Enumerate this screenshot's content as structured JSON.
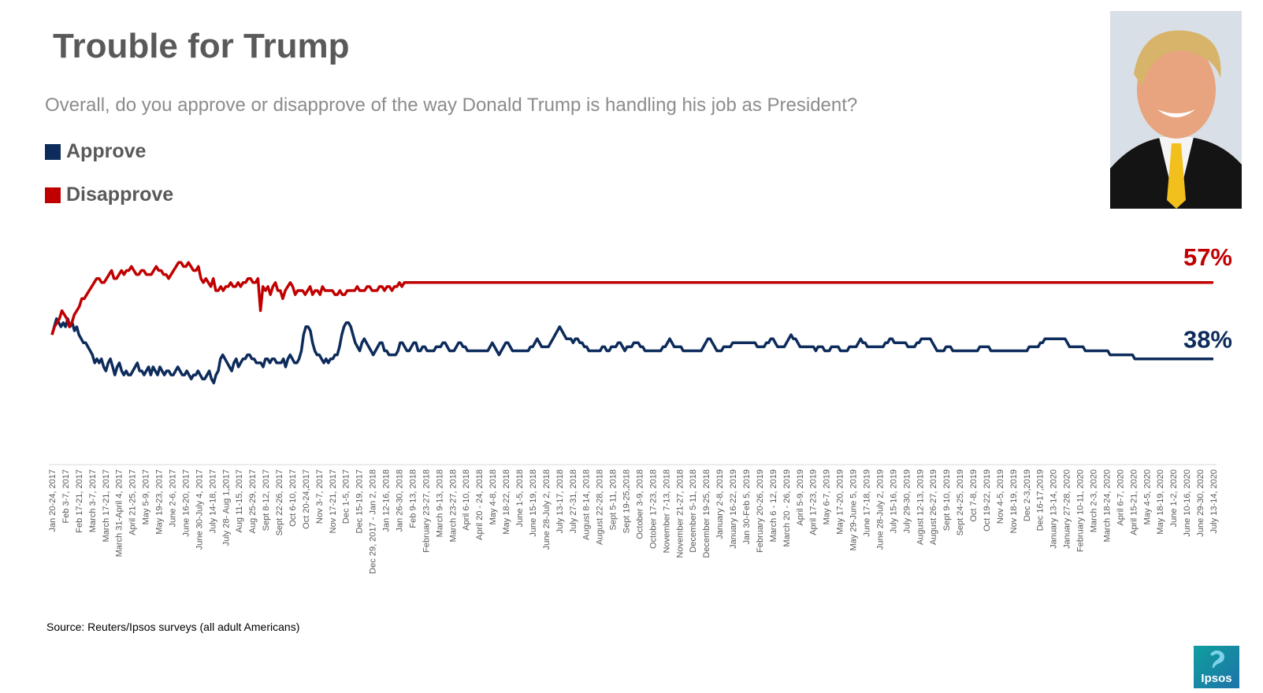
{
  "chart_data": {
    "type": "line",
    "title": "Trouble for Trump",
    "subtitle": "Overall, do you approve or disapprove of the way Donald Trump is handling his job as President?",
    "ylim": [
      25,
      65
    ],
    "grid": false,
    "legend_position": "top-left",
    "x_tick_labels": [
      "Jan 20-24, 2017",
      "Feb 3-7, 2017",
      "Feb 17-21, 2017",
      "March 3-7, 2017",
      "March 17-21, 2017",
      "March 31-April 4, 2017",
      "April 21-25, 2017",
      "May 5-9, 2017",
      "May 19-23, 2017",
      "June 2-6, 2017",
      "June 16-20, 2017",
      "June 30-July 4, 2017",
      "July 14-18, 2017",
      "July 28- Aug 1,2017",
      "Aug 11-15, 2017",
      "Aug 25-29, 2017",
      "Sept 8-12, 2017",
      "Sept 22-26, 2017",
      "Oct 6-10, 2017",
      "Oct 20-24,2017",
      "Nov 3-7, 2017",
      "Nov 17-21, 2017",
      "Dec 1-5, 2017",
      "Dec 15-19, 2017",
      "Dec 29, 2017 - Jan 2, 2018",
      "Jan 12-16, 2018",
      "Jan 26-30, 2018",
      "Feb 9-13, 2018",
      "February 23-27, 2018",
      "March 9-13, 2018",
      "March 23-27, 2018",
      "April 6-10, 2018",
      "April 20 - 24, 2018",
      "May 4-8, 2018",
      "May 18-22, 2018",
      "June 1-5, 2018",
      "June 15-19, 2018",
      "June 28-July 2, 2018",
      "July 13-17, 2018",
      "July 27-31, 2018",
      "August 8-14, 2018",
      "August 22-28, 2018",
      "Sept 5-11, 2018",
      "Sept 19-25,2018",
      "October 3-9, 2018",
      "October 17-23, 2018",
      "November 7-13, 2018",
      "November 21-27, 2018",
      "December 5-11, 2018",
      "December 19-25, 2018",
      "January 2-8, 2019",
      "January 16-22, 2019",
      "Jan 30-Feb 5, 2019",
      "February 20-26, 2019",
      "March 6 - 12, 2019",
      "March 20 - 26, 2019",
      "April 5-9, 2019",
      "April 17-23, 2019",
      "May 6-7, 2019",
      "May 17-20, 2019",
      "May 29-June 5, 2019",
      "June 17-18, 2019",
      "June 28-July 2, 2019",
      "July 15-16, 2019",
      "July 29-30, 2019",
      "August 12-13, 2019",
      "August 26-27, 2019",
      "Sept 9-10, 2019",
      "Sept 24-25, 2019",
      "Oct 7-8, 2019",
      "Oct 19-22, 2019",
      "Nov 4-5, 2019",
      "Nov 18-19, 2019",
      "Dec 2-3,2019",
      "Dec 16-17,2019",
      "January 13-14, 2020",
      "January 27-28, 2020",
      "February 10-11, 2020",
      "March 2-3, 2020",
      "March 18-24, 2020",
      "April 6-7, 2020",
      "April 15-21, 2020",
      "May 4-5, 2020",
      "May 18-19, 2020",
      "June 1-2, 2020",
      "June 10-16, 2020",
      "June 29-30, 2020",
      "July 13-14, 2020"
    ],
    "series": [
      {
        "name": "Approve",
        "color": "#0d2b5b",
        "end_label": "38%",
        "values": [
          44,
          46,
          48,
          47,
          46,
          47,
          46,
          48,
          46,
          47,
          45,
          46,
          44,
          43,
          42,
          42,
          41,
          40,
          39,
          37,
          38,
          37,
          38,
          36,
          35,
          37,
          38,
          36,
          34,
          36,
          37,
          35,
          34,
          35,
          34,
          34,
          35,
          36,
          37,
          35,
          35,
          34,
          35,
          36,
          34,
          36,
          35,
          34,
          36,
          35,
          34,
          35,
          35,
          34,
          34,
          35,
          36,
          35,
          34,
          34,
          35,
          34,
          33,
          34,
          34,
          35,
          34,
          33,
          33,
          34,
          35,
          33,
          32,
          34,
          35,
          38,
          39,
          38,
          37,
          36,
          35,
          37,
          38,
          36,
          37,
          38,
          38,
          39,
          39,
          38,
          38,
          37,
          37,
          37,
          36,
          38,
          38,
          37,
          38,
          38,
          37,
          37,
          37,
          38,
          36,
          38,
          39,
          38,
          37,
          37,
          38,
          40,
          44,
          46,
          46,
          45,
          42,
          40,
          39,
          39,
          38,
          37,
          38,
          37,
          38,
          38,
          39,
          39,
          41,
          44,
          46,
          47,
          47,
          46,
          44,
          42,
          41,
          40,
          42,
          43,
          42,
          41,
          40,
          39,
          40,
          41,
          42,
          42,
          40,
          40,
          39,
          39,
          39,
          39,
          40,
          42,
          42,
          41,
          40,
          40,
          41,
          42,
          42,
          40,
          40,
          41,
          41,
          40,
          40,
          40,
          40,
          41,
          41,
          41,
          42,
          42,
          41,
          40,
          40,
          40,
          41,
          42,
          42,
          41,
          41,
          40,
          40,
          40,
          40,
          40,
          40,
          40,
          40,
          40,
          40,
          41,
          42,
          41,
          40,
          39,
          40,
          41,
          42,
          42,
          41,
          40,
          40,
          40,
          40,
          40,
          40,
          40,
          40,
          41,
          41,
          42,
          43,
          42,
          41,
          41,
          41,
          41,
          42,
          43,
          44,
          45,
          46,
          45,
          44,
          43,
          43,
          43,
          42,
          43,
          43,
          42,
          42,
          41,
          41,
          40,
          40,
          40,
          40,
          40,
          40,
          41,
          41,
          40,
          40,
          41,
          41,
          41,
          42,
          42,
          41,
          40,
          41,
          41,
          41,
          42,
          42,
          42,
          41,
          41,
          40,
          40,
          40,
          40,
          40,
          40,
          40,
          40,
          41,
          41,
          42,
          43,
          42,
          41,
          41,
          41,
          41,
          40,
          40,
          40,
          40,
          40,
          40,
          40,
          40,
          40,
          41,
          42,
          43,
          43,
          42,
          41,
          40,
          40,
          40,
          41,
          41,
          41,
          41,
          42,
          42,
          42,
          42,
          42,
          42,
          42,
          42,
          42,
          42,
          42,
          41,
          41,
          41,
          41,
          42,
          42,
          43,
          43,
          42,
          41,
          41,
          41,
          41,
          42,
          43,
          44,
          43,
          43,
          42,
          41,
          41,
          41,
          41,
          41,
          41,
          41,
          40,
          41,
          41,
          41,
          40,
          40,
          40,
          41,
          41,
          41,
          41,
          40,
          40,
          40,
          40,
          41,
          41,
          41,
          41,
          42,
          43,
          42,
          42,
          41,
          41,
          41,
          41,
          41,
          41,
          41,
          41,
          42,
          42,
          43,
          43,
          42,
          42,
          42,
          42,
          42,
          42,
          41,
          41,
          41,
          41,
          42,
          42,
          43,
          43,
          43,
          43,
          43,
          42,
          41,
          40,
          40,
          40,
          40,
          41,
          41,
          41,
          40,
          40,
          40,
          40,
          40,
          40,
          40,
          40,
          40,
          40,
          40,
          40,
          41,
          41,
          41,
          41,
          41,
          40,
          40,
          40,
          40,
          40,
          40,
          40,
          40,
          40,
          40,
          40,
          40,
          40,
          40,
          40,
          40,
          40,
          41,
          41,
          41,
          41,
          41,
          42,
          42,
          43,
          43,
          43,
          43,
          43,
          43,
          43,
          43,
          43,
          43,
          42,
          41,
          41,
          41,
          41,
          41,
          41,
          41,
          40,
          40,
          40,
          40,
          40,
          40,
          40,
          40,
          40,
          40,
          40,
          39,
          39,
          39,
          39,
          39,
          39,
          39,
          39,
          39,
          39,
          39,
          38,
          38,
          38,
          38,
          38,
          38,
          38,
          38,
          38,
          38,
          38,
          38,
          38,
          38,
          38,
          38,
          38,
          38,
          38,
          38,
          38,
          38,
          38,
          38,
          38,
          38,
          38,
          38,
          38,
          38,
          38,
          38,
          38,
          38,
          38,
          38
        ]
      },
      {
        "name": "Disapprove",
        "color": "#c00000",
        "end_label": "57%",
        "values": [
          44,
          46,
          47,
          48,
          50,
          49,
          48,
          46,
          47,
          49,
          50,
          51,
          53,
          53,
          54,
          55,
          56,
          57,
          58,
          58,
          57,
          57,
          58,
          59,
          60,
          58,
          58,
          59,
          60,
          59,
          60,
          60,
          61,
          60,
          59,
          59,
          60,
          60,
          59,
          59,
          59,
          60,
          61,
          60,
          60,
          59,
          59,
          58,
          59,
          60,
          61,
          62,
          62,
          61,
          61,
          62,
          61,
          60,
          60,
          61,
          58,
          57,
          58,
          57,
          56,
          58,
          55,
          55,
          56,
          55,
          56,
          56,
          57,
          56,
          56,
          57,
          56,
          57,
          57,
          58,
          58,
          57,
          57,
          58,
          50,
          56,
          55,
          56,
          54,
          56,
          57,
          55,
          55,
          53,
          55,
          56,
          57,
          56,
          54,
          55,
          55,
          55,
          54,
          55,
          56,
          54,
          55,
          55,
          54,
          56,
          55,
          55,
          55,
          55,
          54,
          54,
          55,
          54,
          54,
          55,
          55,
          55,
          55,
          56,
          55,
          55,
          55,
          56,
          56,
          55,
          55,
          55,
          56,
          56,
          55,
          56,
          56,
          55,
          56,
          56,
          57,
          56,
          57,
          57,
          57,
          57,
          57,
          57,
          57,
          57,
          57,
          57,
          57,
          57,
          57,
          57,
          57,
          57,
          57,
          57,
          57,
          57,
          57,
          57,
          57,
          57,
          57,
          57,
          57,
          57,
          57,
          57,
          57,
          57,
          57,
          57,
          57,
          57,
          57,
          57,
          57,
          57,
          57,
          57,
          57,
          57,
          57,
          57,
          57,
          57,
          57,
          57,
          57,
          57,
          57,
          57,
          57,
          57,
          57,
          57,
          57,
          57,
          57,
          57,
          57,
          57,
          57,
          57,
          57,
          57,
          57,
          57,
          57,
          57,
          57,
          57,
          57,
          57,
          57,
          57,
          57,
          57,
          57,
          57,
          57,
          57,
          57,
          57,
          57,
          57,
          57,
          57,
          57,
          57,
          57,
          57,
          57,
          57,
          57,
          57,
          57,
          57,
          57,
          57,
          57,
          57,
          57,
          57,
          57,
          57,
          57,
          57,
          57,
          57,
          57,
          57,
          57,
          57,
          57,
          57,
          57,
          57,
          57,
          57,
          57,
          57,
          57,
          57,
          57,
          57,
          57,
          57,
          57,
          57,
          57,
          57,
          57,
          57,
          57,
          57,
          57,
          57,
          57,
          57,
          57,
          57,
          57,
          57,
          57,
          57,
          57,
          57,
          57,
          57,
          57,
          57,
          57,
          57,
          57,
          57,
          57,
          57,
          57,
          57,
          57,
          57,
          57,
          57,
          57,
          57,
          57,
          57,
          57,
          57,
          57,
          57,
          57,
          57,
          57,
          57,
          57,
          57,
          57,
          57,
          57,
          57,
          57,
          57,
          57,
          57,
          57,
          57,
          57,
          57,
          57,
          57,
          57,
          57,
          57,
          57,
          57,
          57,
          57,
          57,
          57,
          57,
          57,
          57,
          57,
          57,
          57,
          57,
          57,
          57,
          57,
          57,
          57,
          57,
          57,
          57,
          57,
          57,
          57,
          57,
          57,
          57,
          57,
          57,
          57,
          57,
          57,
          57,
          57,
          57,
          57,
          57,
          57,
          57,
          57,
          57,
          57,
          57,
          57,
          57,
          57,
          57,
          57,
          57,
          57,
          57,
          57,
          57,
          57,
          57,
          57,
          57,
          57,
          57,
          57,
          57,
          57,
          57,
          57,
          57,
          57,
          57,
          57,
          57,
          57,
          57,
          57,
          57,
          57,
          57,
          57,
          57,
          57,
          57,
          57,
          57,
          57,
          57,
          57,
          57,
          57,
          57,
          57,
          57,
          57,
          57,
          57,
          57,
          57,
          57,
          57,
          57,
          57,
          57,
          57,
          57,
          57,
          57,
          57,
          57,
          57,
          57,
          57,
          57,
          57,
          57,
          57,
          57,
          57,
          57,
          57,
          57,
          57,
          57,
          57,
          57,
          57,
          57,
          57,
          57,
          57,
          57,
          57,
          57,
          57
        ]
      }
    ]
  },
  "colors": {
    "title": "#595959",
    "subtitle": "#8c8c8c",
    "approve": "#0d2b5b",
    "disapprove": "#c00000",
    "axis": "#d9d9d9"
  },
  "legend": {
    "approve_label": "Approve",
    "disapprove_label": "Disapprove"
  },
  "source": "Source: Reuters/Ipsos surveys (all adult Americans)",
  "logo": {
    "text": "Ipsos"
  }
}
